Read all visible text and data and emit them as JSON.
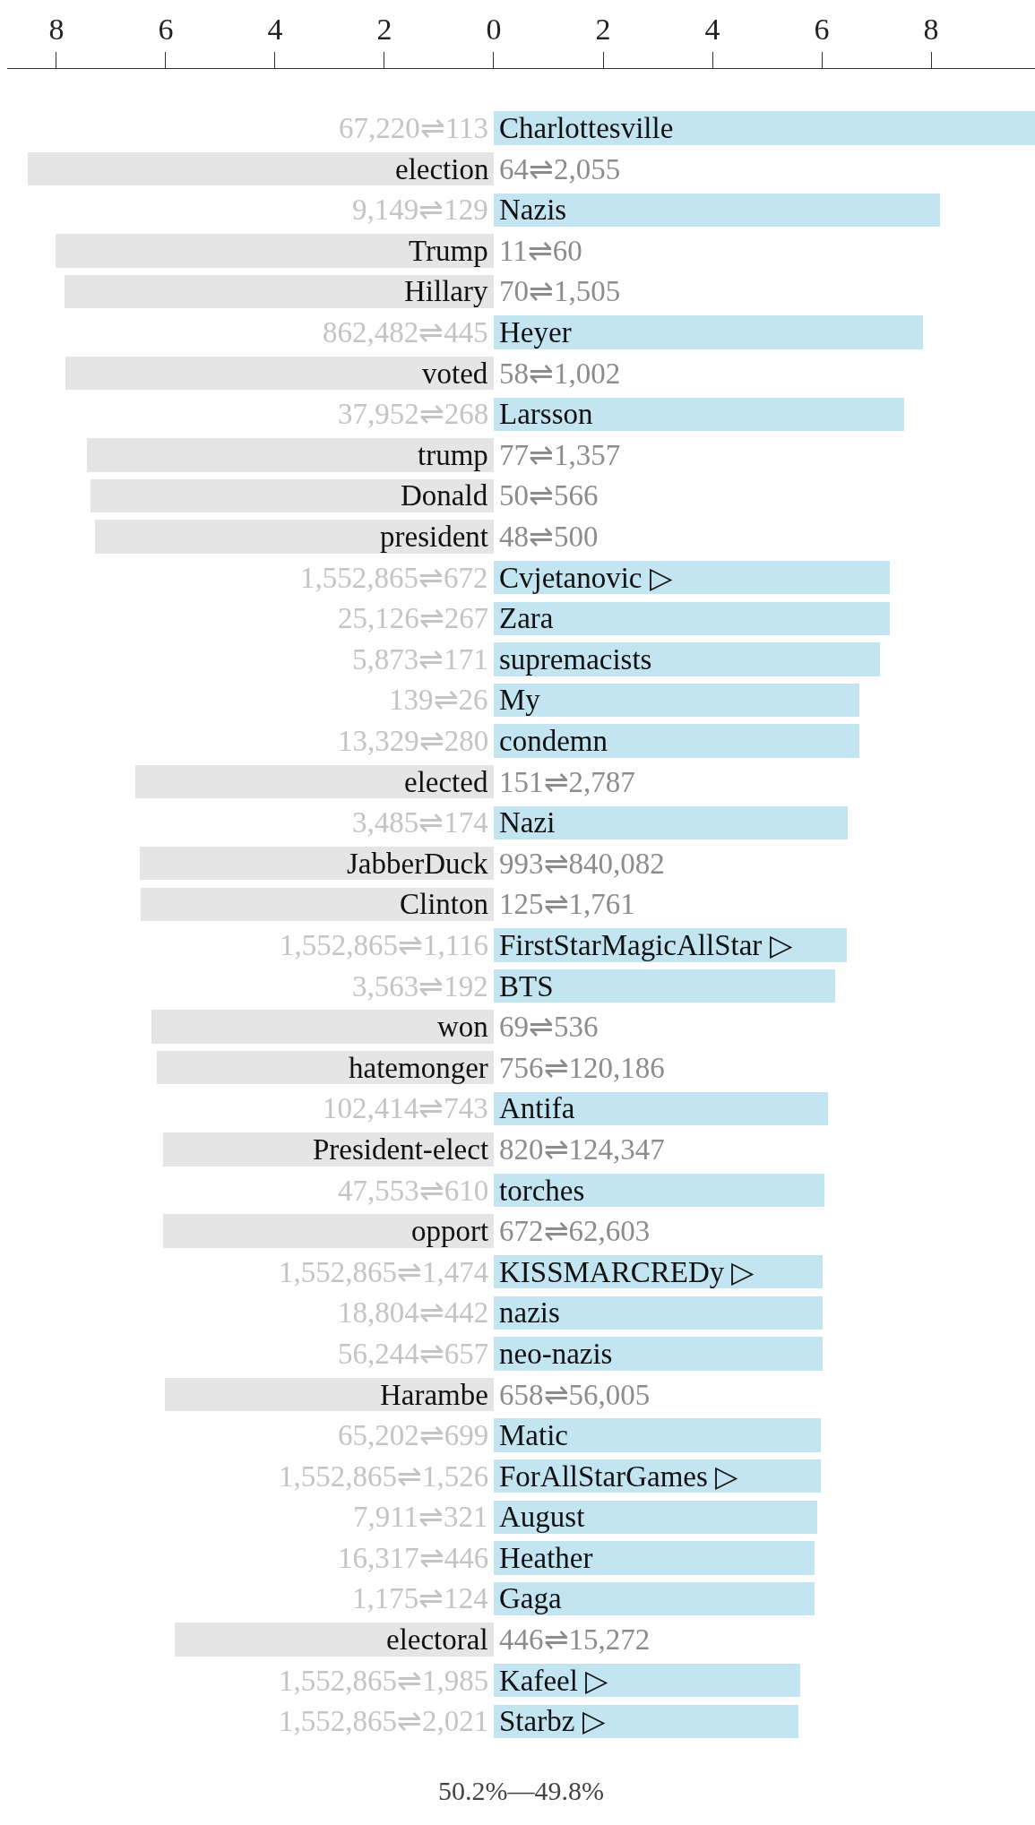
{
  "chart_data": [
    {
      "type": "bar",
      "orientation": "horizontal",
      "categories": [
        null,
        "election",
        null,
        "Trump",
        "Hillary",
        null,
        "voted",
        null,
        "trump",
        "Donald",
        "president",
        null,
        null,
        null,
        null,
        null,
        "elected",
        null,
        "JabberDuck",
        "Clinton",
        null,
        null,
        "won",
        "hatemonger",
        null,
        "President-elect",
        null,
        "opport",
        null,
        null,
        null,
        "Harambe",
        null,
        null,
        null,
        null,
        null,
        "electoral",
        null,
        null
      ],
      "values": [
        null,
        8.53,
        null,
        8.02,
        7.85,
        null,
        7.83,
        null,
        7.44,
        7.38,
        7.3,
        null,
        null,
        null,
        null,
        null,
        6.55,
        null,
        6.47,
        6.45,
        null,
        null,
        6.26,
        6.17,
        null,
        6.04,
        null,
        6.04,
        null,
        null,
        null,
        6.02,
        null,
        null,
        null,
        null,
        null,
        5.83,
        null,
        null
      ],
      "color": "#e5e5e5",
      "xlim": [
        8.9,
        0
      ],
      "xticks": [
        8,
        6,
        4,
        2
      ],
      "legend": false,
      "annotations": [
        "67,220⇌113",
        "9,149⇌129",
        "862,482⇌445",
        "37,952⇌268",
        "1,552,865⇌672",
        "25,126⇌267",
        "5,873⇌171",
        "139⇌26",
        "13,329⇌280",
        "3,485⇌174",
        "1,552,865⇌1,116",
        "3,563⇌192",
        "102,414⇌743",
        "47,553⇌610",
        "1,552,865⇌1,474",
        "18,804⇌442",
        "56,244⇌657",
        "65,202⇌699",
        "1,552,865⇌1,526",
        "7,911⇌321",
        "16,317⇌446",
        "1,175⇌124",
        "1,552,865⇌1,985",
        "1,552,865⇌2,021",
        "50.2%—49.8%"
      ]
    },
    {
      "type": "bar",
      "orientation": "horizontal",
      "categories": [
        "Charlottesville",
        null,
        "Nazis",
        null,
        null,
        "Heyer",
        null,
        "Larsson",
        null,
        null,
        null,
        "Cvjetanovic ▷",
        "Zara",
        "supremacists",
        "My",
        "condemn",
        null,
        "Nazi",
        null,
        null,
        "FirstStarMagicAllStar ▷",
        "BTS",
        null,
        null,
        "Antifa",
        null,
        "torches",
        null,
        "KISSMARCREDy ▷",
        "nazis",
        "neo-nazis",
        null,
        "Matic",
        "ForAllStarGames ▷",
        "August",
        "Heather",
        "Gaga",
        null,
        "Kafeel ▷",
        "Starbz ▷"
      ],
      "values": [
        9.9,
        null,
        8.17,
        null,
        null,
        7.85,
        null,
        7.51,
        null,
        null,
        null,
        7.25,
        7.25,
        7.06,
        6.68,
        6.68,
        null,
        6.47,
        null,
        null,
        6.45,
        6.24,
        null,
        null,
        6.11,
        null,
        6.04,
        null,
        6.02,
        6.02,
        6.02,
        null,
        5.98,
        5.98,
        5.92,
        5.87,
        5.87,
        null,
        5.6,
        5.58
      ],
      "color": "#c2e5f1",
      "xlim": [
        0,
        9.9
      ],
      "xticks": [
        0,
        2,
        4,
        6,
        8
      ],
      "legend": false,
      "annotations": [
        "64⇌2,055",
        "11⇌60",
        "70⇌1,505",
        "58⇌1,002",
        "77⇌1,357",
        "50⇌566",
        "48⇌500",
        "151⇌2,787",
        "993⇌840,082",
        "125⇌1,761",
        "69⇌536",
        "756⇌120,186",
        "820⇌124,347",
        "672⇌62,603",
        "658⇌56,005",
        "446⇌15,272"
      ]
    }
  ]
}
